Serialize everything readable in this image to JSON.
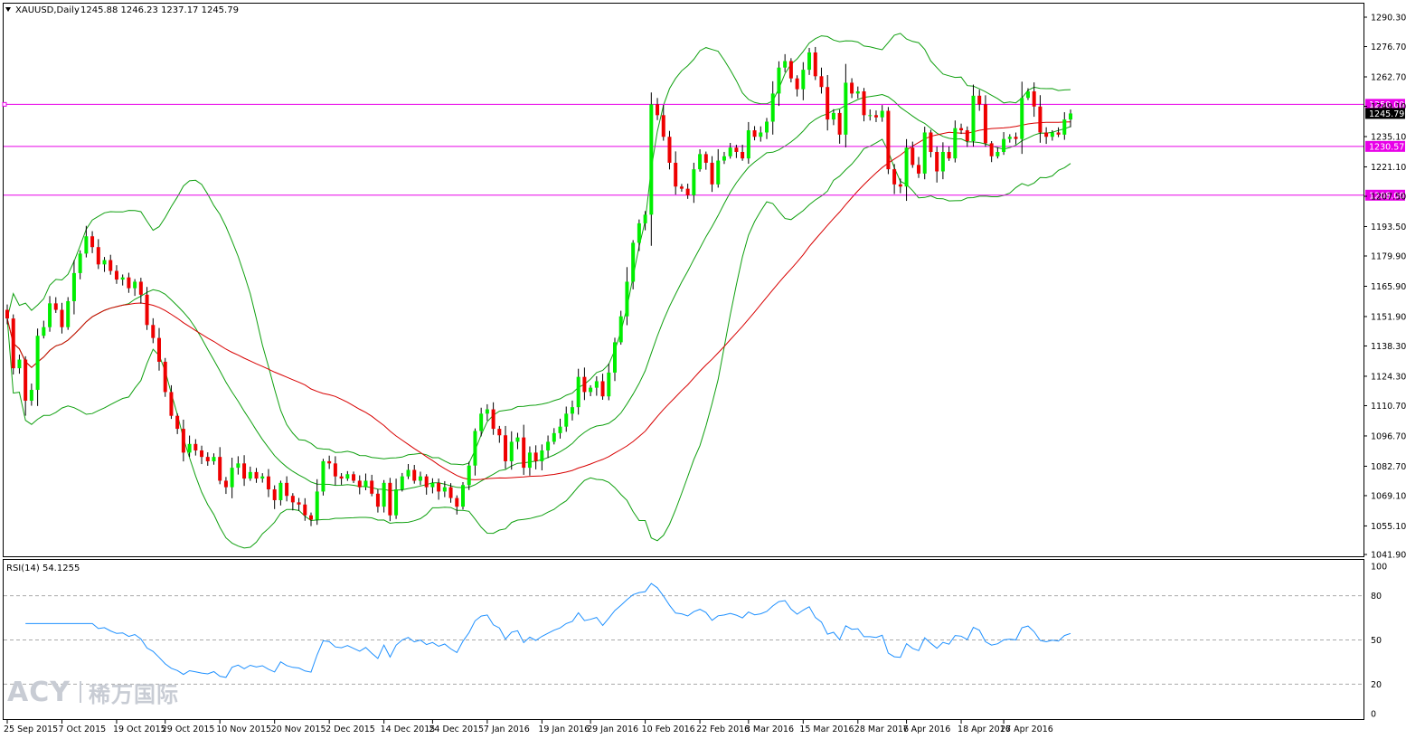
{
  "colors": {
    "bull": "#00ee00",
    "bear": "#ee0000",
    "wick": "#000000",
    "bands": "#10a010",
    "ma": "#d80000",
    "level": "#e800e8",
    "rsi": "#1e90ff",
    "grid": "#aaaaaa",
    "logo": "#c8ccd4"
  },
  "header": {
    "symbol": "XAUUSD,Daily",
    "ohlc": "1245.88 1246.23 1237.17 1245.79",
    "arrow_icon": "triangle-down-icon"
  },
  "logo": {
    "brand": "ACY",
    "cn": "稀万国际"
  },
  "chart_data": [
    {
      "type": "candlestick",
      "title": "XAUUSD,Daily",
      "ylim": [
        1041.9,
        1290.3
      ],
      "ytick_labels": [
        "1290.30",
        "1276.70",
        "1262.70",
        "1249.10",
        "1235.10",
        "1221.10",
        "1207.50",
        "1193.50",
        "1179.90",
        "1165.90",
        "1151.90",
        "1138.30",
        "1124.30",
        "1110.70",
        "1096.70",
        "1082.70",
        "1069.10",
        "1055.10",
        "1041.90"
      ],
      "x_labels": [
        "25 Sep 2015",
        "7 Oct 2015",
        "19 Oct 2015",
        "29 Oct 2015",
        "10 Nov 2015",
        "20 Nov 2015",
        "2 Dec 2015",
        "14 Dec 2015",
        "24 Dec 2015",
        "7 Jan 2016",
        "19 Jan 2016",
        "29 Jan 2016",
        "10 Feb 2016",
        "22 Feb 2016",
        "3 Mar 2016",
        "15 Mar 2016",
        "28 Mar 2016",
        "7 Apr 2016",
        "18 Apr 2016",
        "27 Apr 2016"
      ],
      "x_label_bars": [
        0,
        9,
        18,
        26,
        35,
        44,
        53,
        62,
        70,
        79,
        88,
        96,
        105,
        114,
        122,
        131,
        140,
        148,
        157,
        164
      ],
      "close_series": [
        1151,
        1128,
        1132,
        1113,
        1118,
        1143,
        1147,
        1158,
        1155,
        1147,
        1159,
        1172,
        1181,
        1189,
        1184,
        1176,
        1178,
        1173,
        1169,
        1170,
        1165,
        1168,
        1162,
        1148,
        1142,
        1131,
        1117,
        1106,
        1100,
        1089,
        1093,
        1090,
        1087,
        1085,
        1087,
        1076,
        1073,
        1082,
        1084,
        1077,
        1080,
        1077,
        1078,
        1072,
        1067,
        1075,
        1069,
        1066,
        1065,
        1060,
        1058,
        1071,
        1085,
        1084,
        1078,
        1077,
        1079,
        1076,
        1073,
        1076,
        1070,
        1064,
        1075,
        1060,
        1072,
        1078,
        1081,
        1076,
        1078,
        1073,
        1075,
        1071,
        1073,
        1068,
        1064,
        1074,
        1083,
        1099,
        1107,
        1109,
        1100,
        1097,
        1085,
        1094,
        1096,
        1082,
        1089,
        1085,
        1090,
        1094,
        1098,
        1101,
        1107,
        1110,
        1124,
        1117,
        1119,
        1122,
        1115,
        1126,
        1140,
        1152,
        1168,
        1186,
        1195,
        1199,
        1250,
        1245,
        1235,
        1223,
        1212,
        1211,
        1208,
        1220,
        1227,
        1223,
        1213,
        1224,
        1226,
        1230,
        1228,
        1225,
        1238,
        1235,
        1237,
        1242,
        1255,
        1267,
        1270,
        1262,
        1257,
        1266,
        1274,
        1263,
        1258,
        1243,
        1246,
        1236,
        1260,
        1255,
        1256,
        1245,
        1245,
        1244,
        1247,
        1220,
        1213,
        1212,
        1230,
        1222,
        1218,
        1237,
        1228,
        1219,
        1228,
        1225,
        1239,
        1238,
        1233,
        1254,
        1250,
        1232,
        1226,
        1228,
        1234,
        1235,
        1234,
        1253,
        1256,
        1249,
        1237,
        1235,
        1237,
        1236,
        1243,
        1245.79
      ],
      "sma_period": 50,
      "bollinger": {
        "period": 20,
        "deviations": 2
      },
      "levels": [
        {
          "price": 1250.0,
          "label": "1250.00"
        },
        {
          "price": 1230.57,
          "label": "1230.57"
        },
        {
          "price": 1208.0,
          "label": "1208.00"
        }
      ],
      "last_price": {
        "value": 1245.79,
        "label": "1245.79"
      },
      "grid": false
    },
    {
      "type": "line",
      "title": "RSI(14) 54.1255",
      "ylim": [
        0,
        100
      ],
      "ytick_labels": [
        "100",
        "80",
        "50",
        "20",
        "0"
      ],
      "ytick_values": [
        100,
        80,
        50,
        20,
        0
      ],
      "dashed_levels": [
        80,
        50,
        20
      ],
      "period": 14
    }
  ]
}
